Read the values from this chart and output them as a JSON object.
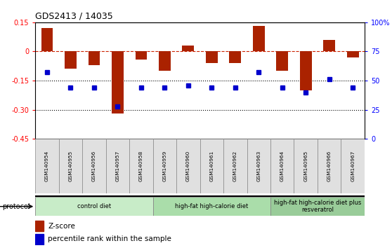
{
  "title": "GDS2413 / 14035",
  "samples": [
    "GSM140954",
    "GSM140955",
    "GSM140956",
    "GSM140957",
    "GSM140958",
    "GSM140959",
    "GSM140960",
    "GSM140961",
    "GSM140962",
    "GSM140963",
    "GSM140964",
    "GSM140965",
    "GSM140966",
    "GSM140967"
  ],
  "zscore": [
    0.12,
    -0.09,
    -0.07,
    -0.32,
    -0.04,
    -0.1,
    0.03,
    -0.06,
    -0.06,
    0.13,
    -0.1,
    -0.2,
    0.06,
    -0.03
  ],
  "percentile": [
    57,
    44,
    44,
    28,
    44,
    44,
    46,
    44,
    44,
    57,
    44,
    40,
    51,
    44
  ],
  "ylim_left": [
    -0.45,
    0.15
  ],
  "ylim_right": [
    0,
    100
  ],
  "yticks_left": [
    0.15,
    0.0,
    -0.15,
    -0.3,
    -0.45
  ],
  "yticks_right": [
    100,
    75,
    50,
    25,
    0
  ],
  "groups": [
    {
      "label": "control diet",
      "start": 0,
      "end": 4,
      "color": "#c8ecc8"
    },
    {
      "label": "high-fat high-calorie diet",
      "start": 5,
      "end": 9,
      "color": "#aaddaa"
    },
    {
      "label": "high-fat high-calorie diet plus\nresveratrol",
      "start": 10,
      "end": 13,
      "color": "#99cc99"
    }
  ],
  "bar_color": "#aa2200",
  "dot_color": "#0000cc",
  "hline_color": "#cc2200",
  "bg_color": "#ffffff"
}
